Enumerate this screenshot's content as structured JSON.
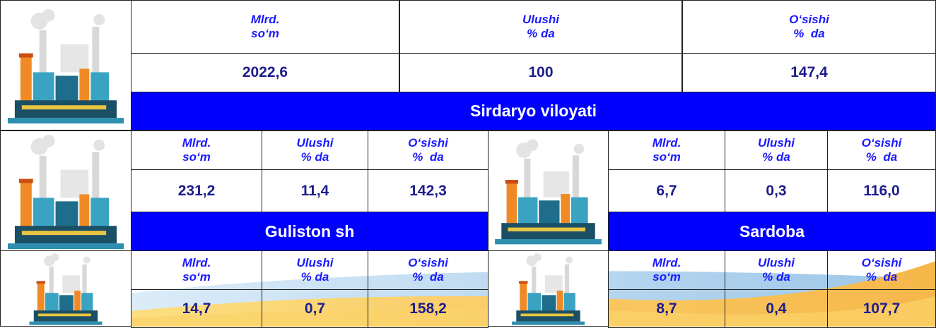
{
  "summary": {
    "headers": [
      [
        "Mlrd.",
        "so‘m"
      ],
      [
        "Ulushi",
        "% da"
      ],
      [
        "O‘sishi",
        "%  da"
      ]
    ],
    "values": [
      "2022,6",
      "100",
      "147,4"
    ],
    "title": "Sirdaryo viloyati"
  },
  "districts": [
    {
      "headers": [
        [
          "Mlrd.",
          "so‘m"
        ],
        [
          "Ulushi",
          "% da"
        ],
        [
          "O‘sishi",
          "%  da"
        ]
      ],
      "values": [
        "231,2",
        "11,4",
        "142,3"
      ],
      "name": "Guliston sh"
    },
    {
      "headers": [
        [
          "Mlrd.",
          "so‘m"
        ],
        [
          "Ulushi",
          "% da"
        ],
        [
          "O‘sishi",
          "%  da"
        ]
      ],
      "values": [
        "6,7",
        "0,3",
        "116,0"
      ],
      "name": "Sardoba"
    },
    {
      "headers": [
        [
          "Mlrd.",
          "so‘m"
        ],
        [
          "Ulushi",
          "% da"
        ],
        [
          "O‘sishi",
          "%  da"
        ]
      ],
      "values": [
        "14,7",
        "0,7",
        "158,2"
      ]
    },
    {
      "headers": [
        [
          "Mlrd.",
          "so‘m"
        ],
        [
          "Ulushi",
          "% da"
        ],
        [
          "O‘sishi",
          "%  da"
        ]
      ],
      "values": [
        "8,7",
        "0,4",
        "107,7"
      ]
    }
  ]
}
